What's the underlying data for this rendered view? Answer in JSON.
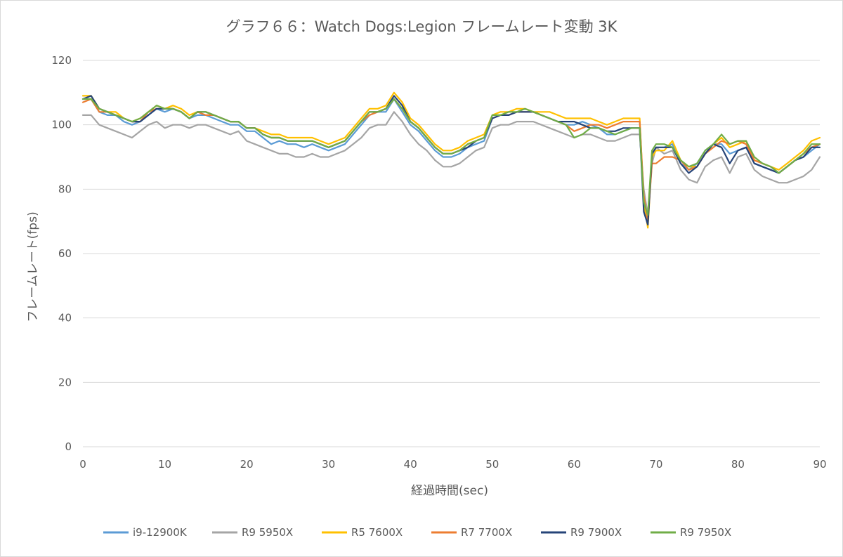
{
  "chart_data": {
    "type": "line",
    "title": "グラフ６６：Watch Dogs:Legion フレームレート変動 3K",
    "xlabel": "経過時間(sec)",
    "ylabel": "フレームレート(fps)",
    "xlim": [
      0,
      90
    ],
    "ylim": [
      0,
      120
    ],
    "x_ticks": [
      "0",
      "10",
      "20",
      "30",
      "40",
      "50",
      "60",
      "70",
      "80",
      "90"
    ],
    "y_ticks": [
      "0",
      "20",
      "40",
      "60",
      "80",
      "100",
      "120"
    ],
    "grid": "horizontal",
    "legend_position": "bottom",
    "x": [
      0,
      1,
      2,
      3,
      4,
      5,
      6,
      7,
      8,
      9,
      10,
      11,
      12,
      13,
      14,
      15,
      16,
      17,
      18,
      19,
      20,
      21,
      22,
      23,
      24,
      25,
      26,
      27,
      28,
      29,
      30,
      31,
      32,
      33,
      34,
      35,
      36,
      37,
      38,
      39,
      40,
      41,
      42,
      43,
      44,
      45,
      46,
      47,
      48,
      49,
      50,
      51,
      52,
      53,
      54,
      55,
      56,
      57,
      58,
      59,
      60,
      61,
      62,
      63,
      64,
      65,
      66,
      67,
      68,
      68.5,
      69,
      69.5,
      70,
      71,
      72,
      73,
      74,
      75,
      76,
      77,
      78,
      79,
      80,
      81,
      82,
      83,
      84,
      85,
      86,
      87,
      88,
      89,
      90
    ],
    "series": [
      {
        "name": "i9-12900K",
        "color": "#5b9bd5",
        "values": [
          108,
          108,
          104,
          103,
          103,
          101,
          100,
          101,
          103,
          105,
          104,
          105,
          104,
          102,
          103,
          103,
          102,
          101,
          100,
          100,
          98,
          98,
          96,
          94,
          95,
          94,
          94,
          93,
          94,
          93,
          92,
          93,
          94,
          97,
          100,
          103,
          104,
          104,
          108,
          104,
          100,
          98,
          95,
          92,
          90,
          90,
          91,
          93,
          94,
          95,
          102,
          103,
          103,
          104,
          104,
          104,
          103,
          102,
          101,
          100,
          100,
          101,
          100,
          99,
          97,
          97,
          98,
          99,
          99,
          75,
          70,
          90,
          93,
          93,
          94,
          88,
          86,
          88,
          92,
          94,
          94,
          91,
          92,
          93,
          88,
          87,
          86,
          85,
          87,
          89,
          90,
          92,
          94
        ]
      },
      {
        "name": "R9 5950X",
        "color": "#a5a5a5",
        "values": [
          103,
          103,
          100,
          99,
          98,
          97,
          96,
          98,
          100,
          101,
          99,
          100,
          100,
          99,
          100,
          100,
          99,
          98,
          97,
          98,
          95,
          94,
          93,
          92,
          91,
          91,
          90,
          90,
          91,
          90,
          90,
          91,
          92,
          94,
          96,
          99,
          100,
          100,
          104,
          101,
          97,
          94,
          92,
          89,
          87,
          87,
          88,
          90,
          92,
          93,
          99,
          100,
          100,
          101,
          101,
          101,
          100,
          99,
          98,
          97,
          96,
          97,
          97,
          96,
          95,
          95,
          96,
          97,
          97,
          80,
          72,
          88,
          93,
          91,
          92,
          86,
          83,
          82,
          87,
          89,
          90,
          85,
          90,
          91,
          86,
          84,
          83,
          82,
          82,
          83,
          84,
          86,
          90
        ]
      },
      {
        "name": "R5 7600X",
        "color": "#ffc000",
        "values": [
          109,
          109,
          105,
          104,
          104,
          102,
          101,
          102,
          104,
          106,
          105,
          106,
          105,
          103,
          104,
          104,
          103,
          102,
          101,
          101,
          99,
          99,
          98,
          97,
          97,
          96,
          96,
          96,
          96,
          95,
          94,
          95,
          96,
          99,
          102,
          105,
          105,
          106,
          110,
          107,
          102,
          100,
          97,
          94,
          92,
          92,
          93,
          95,
          96,
          97,
          103,
          104,
          104,
          105,
          105,
          104,
          104,
          104,
          103,
          102,
          102,
          102,
          102,
          101,
          100,
          101,
          102,
          102,
          102,
          76,
          68,
          90,
          92,
          92,
          95,
          89,
          87,
          87,
          91,
          94,
          96,
          93,
          94,
          95,
          89,
          88,
          87,
          86,
          88,
          90,
          92,
          95,
          96
        ]
      },
      {
        "name": "R7 7700X",
        "color": "#ed7d31",
        "values": [
          107,
          108,
          104,
          104,
          103,
          102,
          101,
          101,
          104,
          105,
          105,
          105,
          104,
          102,
          104,
          103,
          103,
          102,
          101,
          101,
          99,
          99,
          97,
          96,
          96,
          95,
          95,
          95,
          95,
          94,
          93,
          94,
          95,
          98,
          101,
          103,
          104,
          105,
          108,
          105,
          101,
          99,
          96,
          93,
          91,
          91,
          92,
          94,
          95,
          96,
          102,
          103,
          103,
          104,
          104,
          104,
          103,
          102,
          101,
          100,
          98,
          99,
          100,
          100,
          99,
          100,
          101,
          101,
          101,
          78,
          70,
          88,
          88,
          90,
          90,
          89,
          86,
          87,
          91,
          93,
          95,
          94,
          95,
          94,
          89,
          88,
          87,
          85,
          87,
          89,
          91,
          93,
          94
        ]
      },
      {
        "name": "R9 7900X",
        "color": "#264478",
        "values": [
          108,
          109,
          105,
          104,
          103,
          102,
          101,
          101,
          103,
          105,
          105,
          105,
          104,
          102,
          104,
          104,
          103,
          102,
          101,
          101,
          99,
          99,
          97,
          96,
          96,
          95,
          95,
          95,
          95,
          94,
          93,
          94,
          95,
          98,
          101,
          104,
          104,
          105,
          109,
          106,
          101,
          99,
          96,
          93,
          91,
          91,
          92,
          93,
          95,
          96,
          102,
          103,
          103,
          104,
          104,
          104,
          103,
          102,
          101,
          101,
          101,
          100,
          99,
          99,
          98,
          98,
          99,
          99,
          99,
          73,
          69,
          91,
          93,
          93,
          93,
          88,
          85,
          87,
          91,
          94,
          93,
          88,
          92,
          93,
          88,
          87,
          86,
          85,
          87,
          89,
          90,
          93,
          93
        ]
      },
      {
        "name": "R9 7950X",
        "color": "#70ad47",
        "values": [
          108,
          108,
          105,
          104,
          103,
          102,
          101,
          102,
          104,
          106,
          105,
          105,
          104,
          102,
          104,
          104,
          103,
          102,
          101,
          101,
          99,
          99,
          97,
          96,
          96,
          95,
          95,
          95,
          95,
          94,
          93,
          94,
          95,
          98,
          101,
          104,
          104,
          105,
          108,
          105,
          101,
          99,
          96,
          93,
          91,
          91,
          92,
          94,
          95,
          96,
          103,
          103,
          104,
          104,
          105,
          104,
          103,
          102,
          101,
          100,
          96,
          97,
          99,
          99,
          98,
          97,
          98,
          99,
          99,
          76,
          72,
          92,
          94,
          94,
          93,
          89,
          87,
          88,
          92,
          94,
          97,
          94,
          95,
          95,
          90,
          88,
          87,
          85,
          87,
          89,
          91,
          94,
          94
        ]
      }
    ]
  }
}
